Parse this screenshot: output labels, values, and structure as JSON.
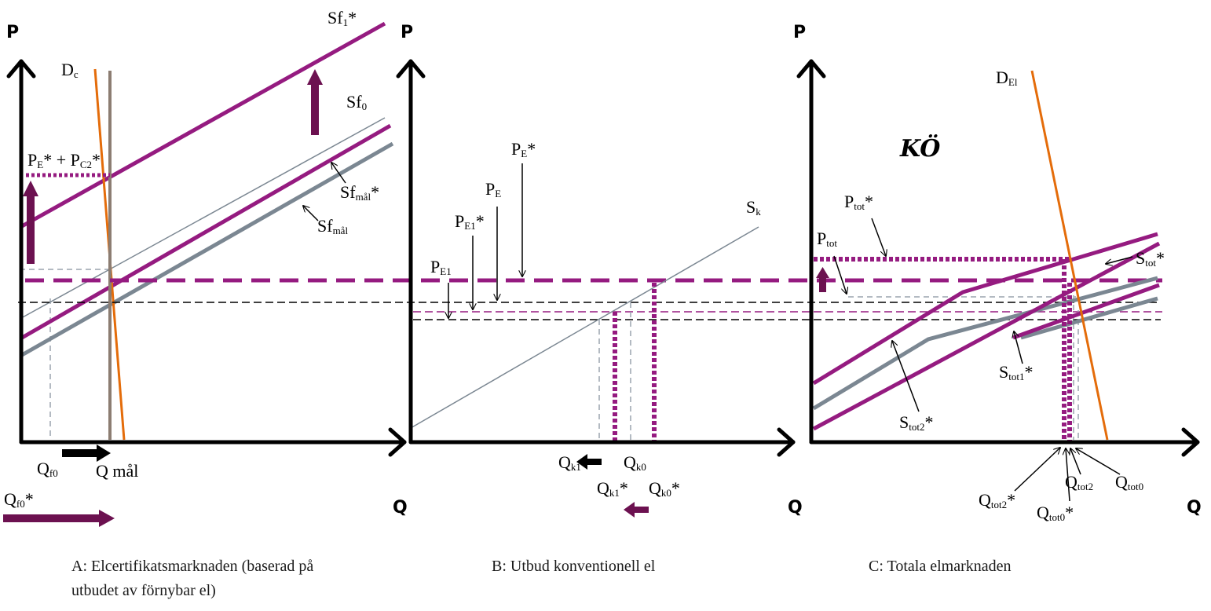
{
  "colors": {
    "purple": "#951b80",
    "dark_purple": "#6c1150",
    "gray_line": "#7b8792",
    "orange": "#e46c0a",
    "demand_gray": "#8c7d72",
    "black": "#000000"
  },
  "panel_a": {
    "axis_p": "P",
    "axis_q": "Q",
    "demand": {
      "main": "D",
      "sub": "c"
    },
    "sf1": {
      "main": "Sf",
      "sub": "1",
      "sup": "*"
    },
    "sf0": {
      "main": "Sf",
      "sub": "0"
    },
    "sfmal_star": {
      "main": "Sf",
      "sub": "mål",
      "sup": "*"
    },
    "sfmal": {
      "main": "Sf",
      "sub": "mål"
    },
    "price": {
      "p1": "P",
      "s1": "E",
      "mid": "* + P",
      "s2": "C2",
      "end": "*"
    },
    "qf0": {
      "main": "Q",
      "sub": "f0"
    },
    "qmal": "Q mål",
    "qf0_star": {
      "main": "Q",
      "sub": "f0",
      "sup": "*"
    },
    "caption_line1": "A: Elcertifikatsmarknaden (baserad på",
    "caption_line2": "utbudet av förnybar el)"
  },
  "panel_b": {
    "axis_p": "P",
    "axis_q": "Q",
    "sk": {
      "main": "S",
      "sub": "k"
    },
    "pe_star": {
      "main": "P",
      "sub": "E",
      "sup": "*"
    },
    "pe": {
      "main": "P",
      "sub": "E"
    },
    "pe1_star": {
      "main": "P",
      "sub": "E1",
      "sup": "*"
    },
    "pe1": {
      "main": "P",
      "sub": "E1"
    },
    "qk1": {
      "main": "Q",
      "sub": "k1"
    },
    "qk0": {
      "main": "Q",
      "sub": "k0"
    },
    "qk1_star": {
      "main": "Q",
      "sub": "k1",
      "sup": "*"
    },
    "qk0_star": {
      "main": "Q",
      "sub": "k0",
      "sup": "*"
    },
    "caption": "B: Utbud konventionell el"
  },
  "panel_c": {
    "axis_p": "P",
    "axis_q": "Q",
    "demand": {
      "main": "D",
      "sub": "El"
    },
    "ko": "KÖ",
    "ptot_star": {
      "main": "P",
      "sub": "tot",
      "sup": "*"
    },
    "ptot": {
      "main": "P",
      "sub": "tot"
    },
    "stot_star": {
      "main": "S",
      "sub": "tot",
      "sup": "*"
    },
    "stot1_star": {
      "main": "S",
      "sub": "tot1",
      "sup": "*"
    },
    "stot2_star": {
      "main": "S",
      "sub": "tot2",
      "sup": "*"
    },
    "qtot2_star": {
      "main": "Q",
      "sub": "tot2",
      "sup": "*"
    },
    "qtot0_star": {
      "main": "Q",
      "sub": "tot0",
      "sup": "*"
    },
    "qtot2": {
      "main": "Q",
      "sub": "tot2"
    },
    "qtot0": {
      "main": "Q",
      "sub": "tot0"
    },
    "caption": "C: Totala elmarknaden"
  }
}
